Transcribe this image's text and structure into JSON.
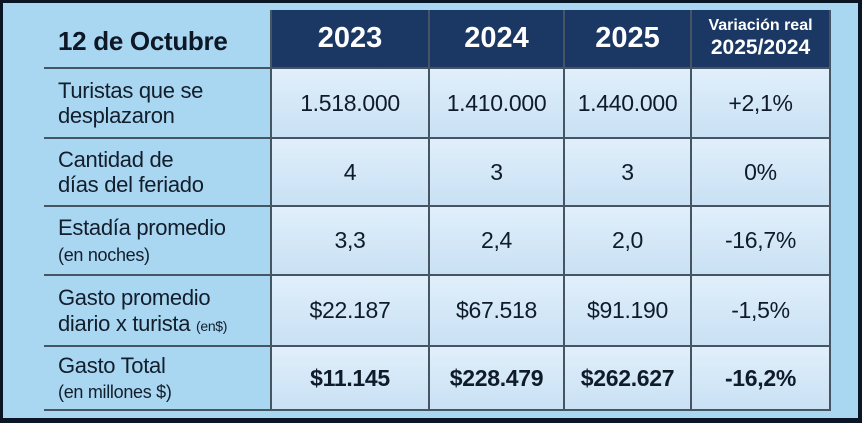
{
  "colors": {
    "header_bg": "#1b3864",
    "header_text": "#ffffff",
    "canvas_bg": "#a9d6f0",
    "cell_bg": "#d6e8f7",
    "grid_line": "#465564",
    "frame_border": "#0a1526",
    "text": "#121e2c"
  },
  "table": {
    "title": "12 de Octubre",
    "year_headers": [
      "2023",
      "2024",
      "2025"
    ],
    "variation_header": {
      "line1": "Variación real",
      "line2": "2025/2024"
    },
    "rows": [
      {
        "line1": "Turistas que se",
        "line2": "desplazaron",
        "values": [
          "1.518.000",
          "1.410.000",
          "1.440.000"
        ],
        "variation": "+2,1%"
      },
      {
        "line1": "Cantidad de",
        "line2": "días del feriado",
        "values": [
          "4",
          "3",
          "3"
        ],
        "variation": "0%"
      },
      {
        "line1": "Estadía promedio",
        "line2_small": "(en noches)",
        "values": [
          "3,3",
          "2,4",
          "2,0"
        ],
        "variation": "-16,7%"
      },
      {
        "line1": "Gasto promedio",
        "line2": "diario x turista",
        "line2_small": "(en$)",
        "values": [
          "$22.187",
          "$67.518",
          "$91.190"
        ],
        "variation": "-1,5%"
      },
      {
        "line1": "Gasto Total",
        "line2_small": "(en millones $)",
        "values": [
          "$11.145",
          "$228.479",
          "$262.627"
        ],
        "variation": "-16,2%"
      }
    ]
  },
  "chart_data": {
    "type": "table",
    "title": "12 de Octubre",
    "columns": [
      "",
      "2023",
      "2024",
      "2025",
      "Variación real 2025/2024"
    ],
    "rows": [
      [
        "Turistas que se desplazaron",
        "1.518.000",
        "1.410.000",
        "1.440.000",
        "+2,1%"
      ],
      [
        "Cantidad de días del feriado",
        "4",
        "3",
        "3",
        "0%"
      ],
      [
        "Estadía promedio (en noches)",
        "3,3",
        "2,4",
        "2,0",
        "-16,7%"
      ],
      [
        "Gasto promedio diario x turista (en$)",
        "$22.187",
        "$67.518",
        "$91.190",
        "-1,5%"
      ],
      [
        "Gasto Total (en millones $)",
        "$11.145",
        "$228.479",
        "$262.627",
        "-16,2%"
      ]
    ]
  }
}
